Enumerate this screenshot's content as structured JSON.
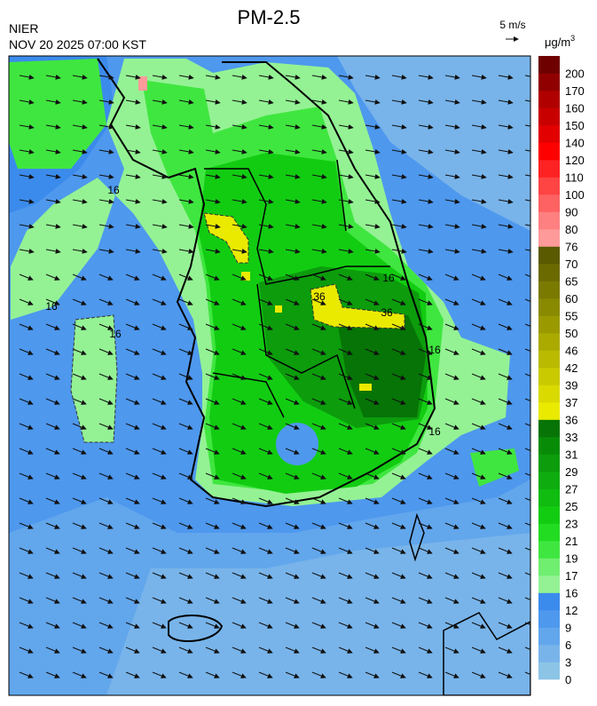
{
  "header": {
    "title": "PM-2.5",
    "agency": "NIER",
    "datetime": "NOV 20 2025 07:00 KST",
    "wind_scale": "5 m/s",
    "unit": "μg/m",
    "unit_power": "3"
  },
  "colorbar": {
    "labels": [
      0,
      3,
      6,
      9,
      12,
      16,
      17,
      19,
      21,
      23,
      25,
      27,
      29,
      31,
      33,
      36,
      37,
      39,
      42,
      46,
      50,
      55,
      60,
      65,
      70,
      76,
      80,
      90,
      100,
      110,
      120,
      140,
      150,
      160,
      170,
      200
    ],
    "colors": [
      "#8cc4e6",
      "#78b4ea",
      "#62a6ec",
      "#4e98ee",
      "#3b8bec",
      "#94f294",
      "#70ee70",
      "#40e640",
      "#22dc22",
      "#12cc12",
      "#10bc10",
      "#0eac0e",
      "#0c9c0c",
      "#088c08",
      "#067406",
      "#eaea00",
      "#dada00",
      "#caca00",
      "#baba00",
      "#aaaa00",
      "#9a9a00",
      "#8a8a00",
      "#7a7a00",
      "#6a6a00",
      "#5a5a00",
      "#ff9a9a",
      "#ff8080",
      "#ff6262",
      "#ff4444",
      "#ff2222",
      "#ff0000",
      "#e20000",
      "#c80000",
      "#b00000",
      "#900000",
      "#6e0000"
    ]
  },
  "map_labels": [
    "16",
    "16",
    "16",
    "16",
    "16",
    "36",
    "36",
    "16"
  ]
}
